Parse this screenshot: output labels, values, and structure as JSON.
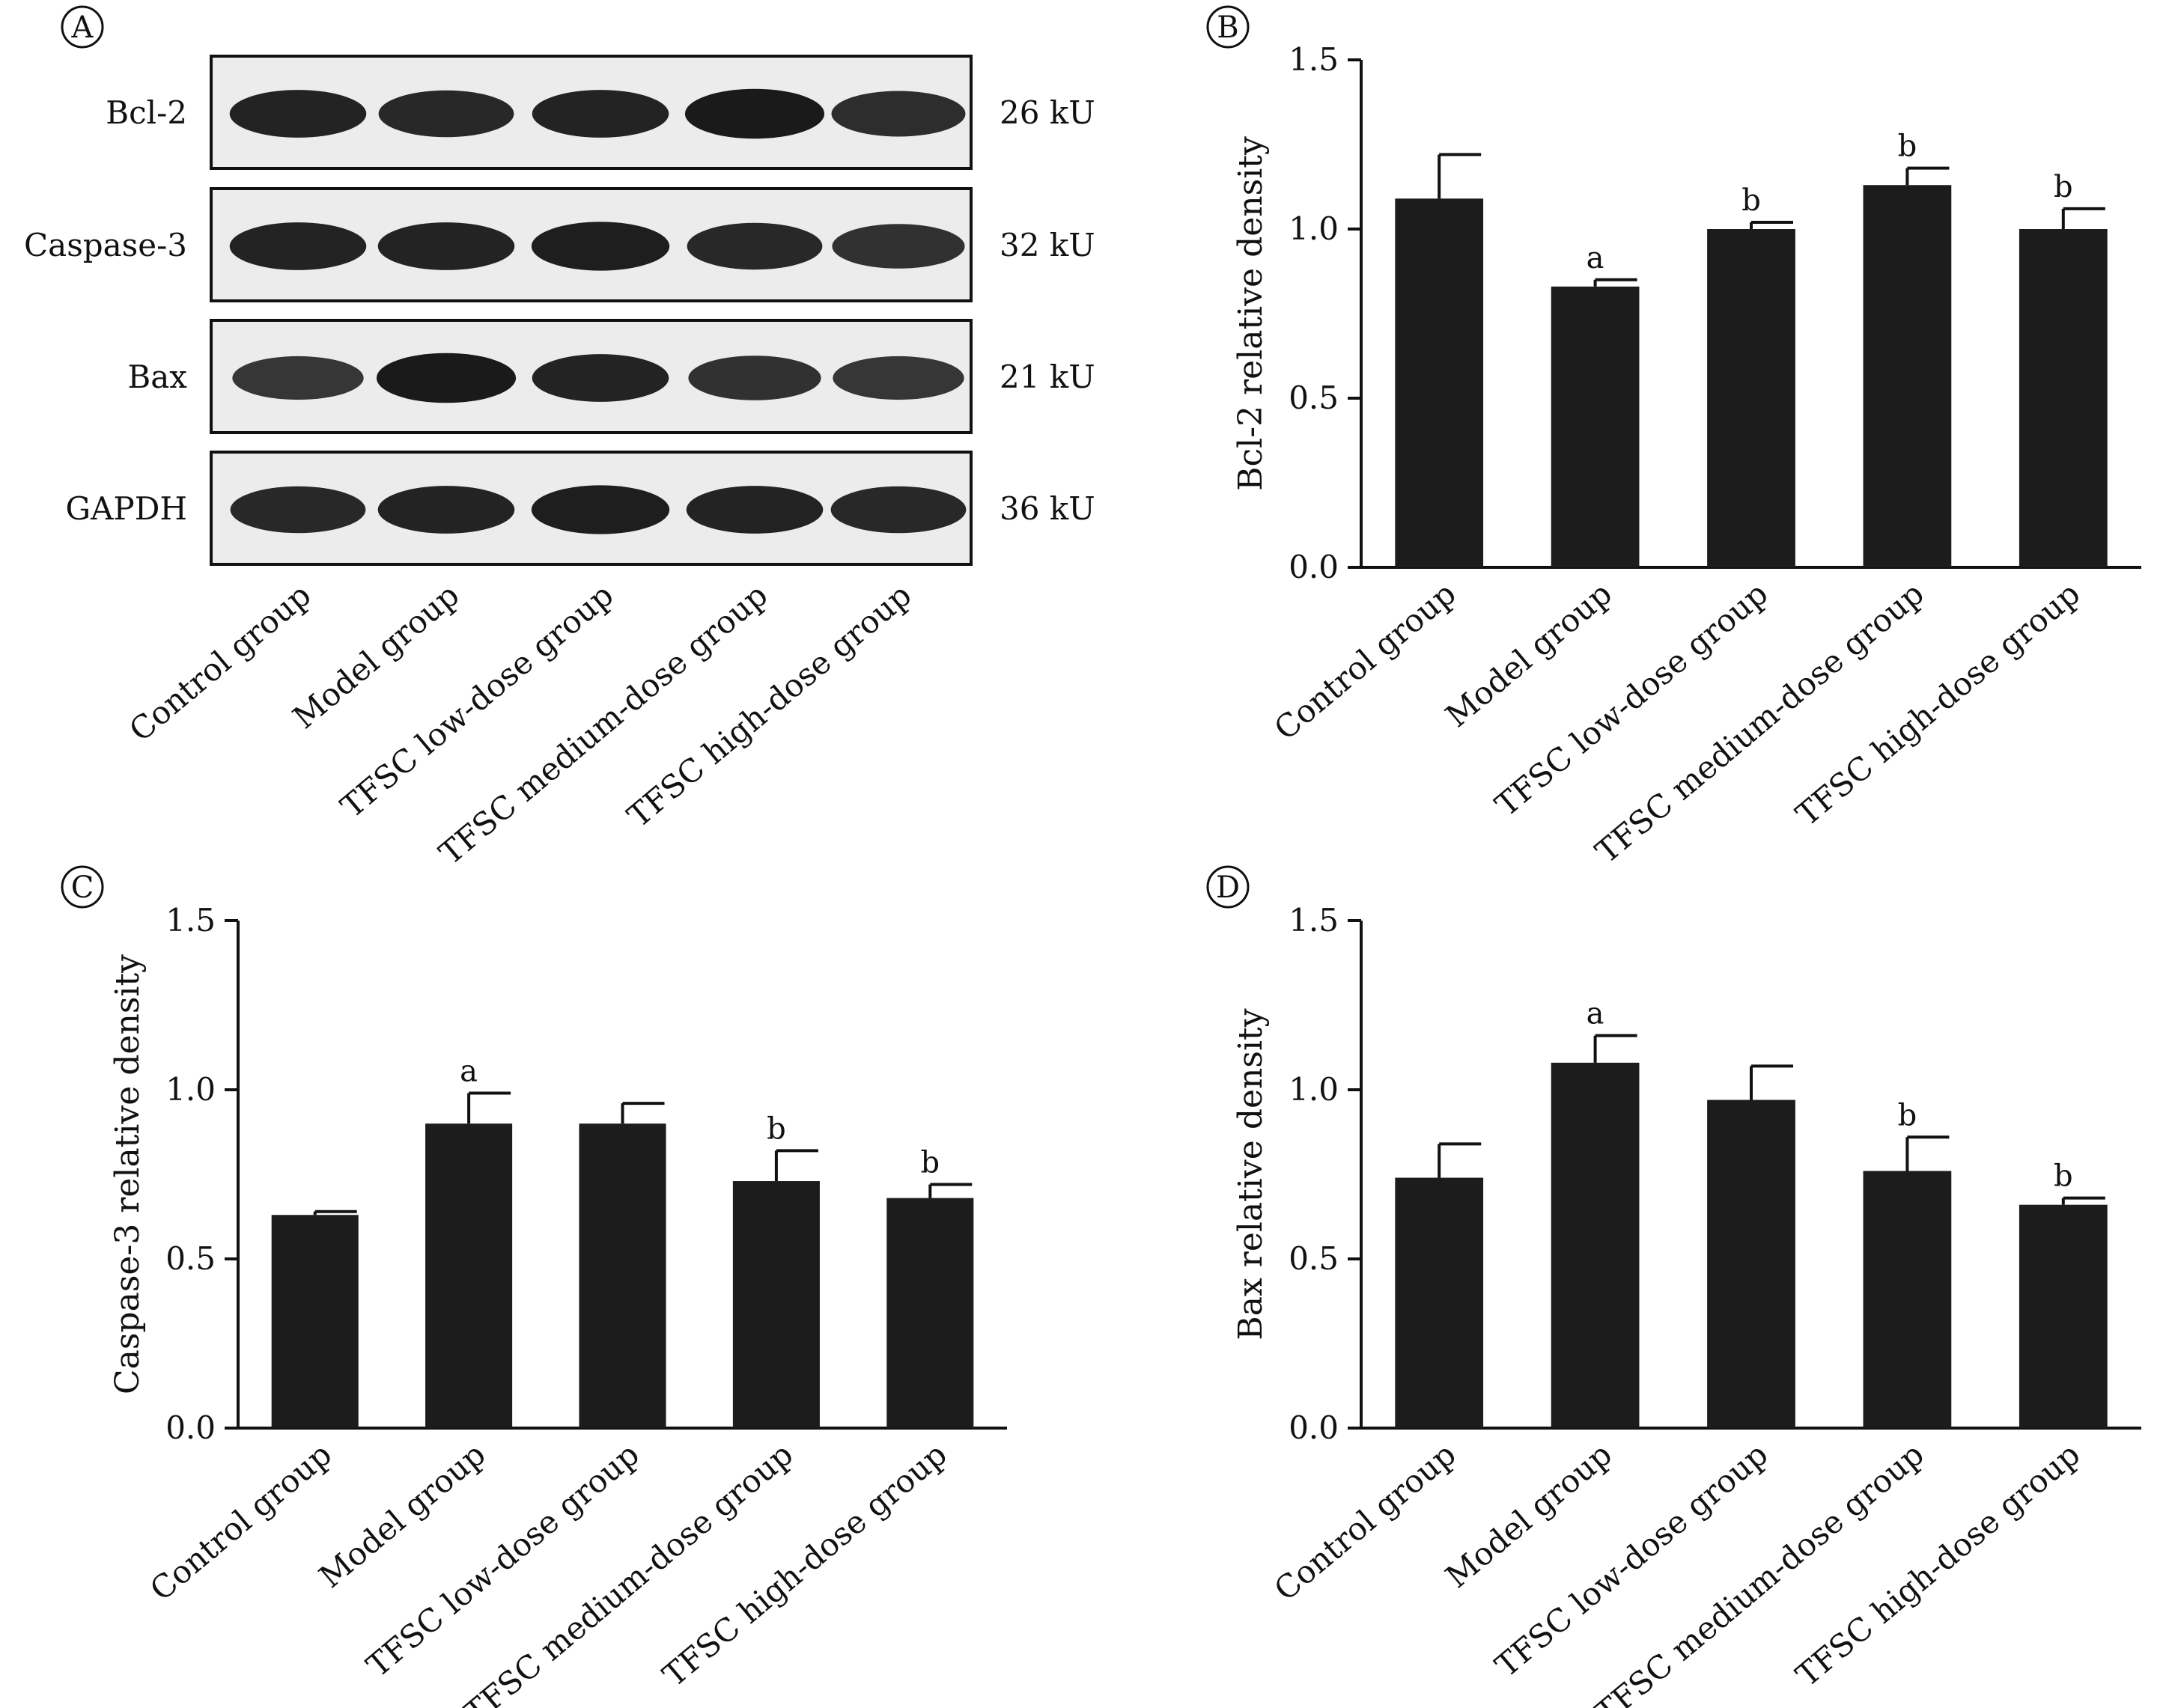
{
  "panel_labels": {
    "A": "A",
    "B": "B",
    "C": "C",
    "D": "D"
  },
  "western_blot": {
    "rows": [
      {
        "protein": "Bcl-2",
        "size": "26 kU",
        "intensity": [
          0.85,
          0.8,
          0.85,
          0.95,
          0.75
        ]
      },
      {
        "protein": "Caspase-3",
        "size": "32 kU",
        "intensity": [
          0.85,
          0.85,
          0.9,
          0.8,
          0.7
        ]
      },
      {
        "protein": "Bax",
        "size": "21 kU",
        "intensity": [
          0.65,
          0.95,
          0.85,
          0.7,
          0.65
        ]
      },
      {
        "protein": "GAPDH",
        "size": "36 kU",
        "intensity": [
          0.8,
          0.85,
          0.9,
          0.85,
          0.8
        ]
      }
    ],
    "lanes": [
      "Control group",
      "Model group",
      "TFSC low-dose group",
      "TFSC medium-dose group",
      "TFSC high-dose group"
    ]
  },
  "chart_data": [
    {
      "panel": "B",
      "type": "bar",
      "ylabel": "Bcl-2 relative density",
      "ylim": [
        0,
        1.5
      ],
      "yticks": [
        "0.0",
        "0.5",
        "1.0",
        "1.5"
      ],
      "categories": [
        "Control group",
        "Model group",
        "TFSC low-dose group",
        "TFSC medium-dose group",
        "TFSC high-dose group"
      ],
      "values": [
        1.09,
        0.83,
        1.0,
        1.13,
        1.0
      ],
      "errors": [
        0.13,
        0.02,
        0.02,
        0.05,
        0.06
      ],
      "annotations": [
        "",
        "a",
        "b",
        "b",
        "b"
      ]
    },
    {
      "panel": "C",
      "type": "bar",
      "ylabel": "Caspase-3 relative density",
      "ylim": [
        0,
        1.5
      ],
      "yticks": [
        "0.0",
        "0.5",
        "1.0",
        "1.5"
      ],
      "categories": [
        "Control group",
        "Model group",
        "TFSC low-dose group",
        "TFSC medium-dose group",
        "TFSC high-dose group"
      ],
      "values": [
        0.63,
        0.9,
        0.9,
        0.73,
        0.68
      ],
      "errors": [
        0.01,
        0.09,
        0.06,
        0.09,
        0.04
      ],
      "annotations": [
        "",
        "a",
        "",
        "b",
        "b"
      ]
    },
    {
      "panel": "D",
      "type": "bar",
      "ylabel": "Bax relative density",
      "ylim": [
        0,
        1.5
      ],
      "yticks": [
        "0.0",
        "0.5",
        "1.0",
        "1.5"
      ],
      "categories": [
        "Control group",
        "Model group",
        "TFSC low-dose group",
        "TFSC medium-dose group",
        "TFSC high-dose group"
      ],
      "values": [
        0.74,
        1.08,
        0.97,
        0.76,
        0.66
      ],
      "errors": [
        0.1,
        0.08,
        0.1,
        0.1,
        0.02
      ],
      "annotations": [
        "",
        "a",
        "",
        "b",
        "b"
      ]
    }
  ]
}
